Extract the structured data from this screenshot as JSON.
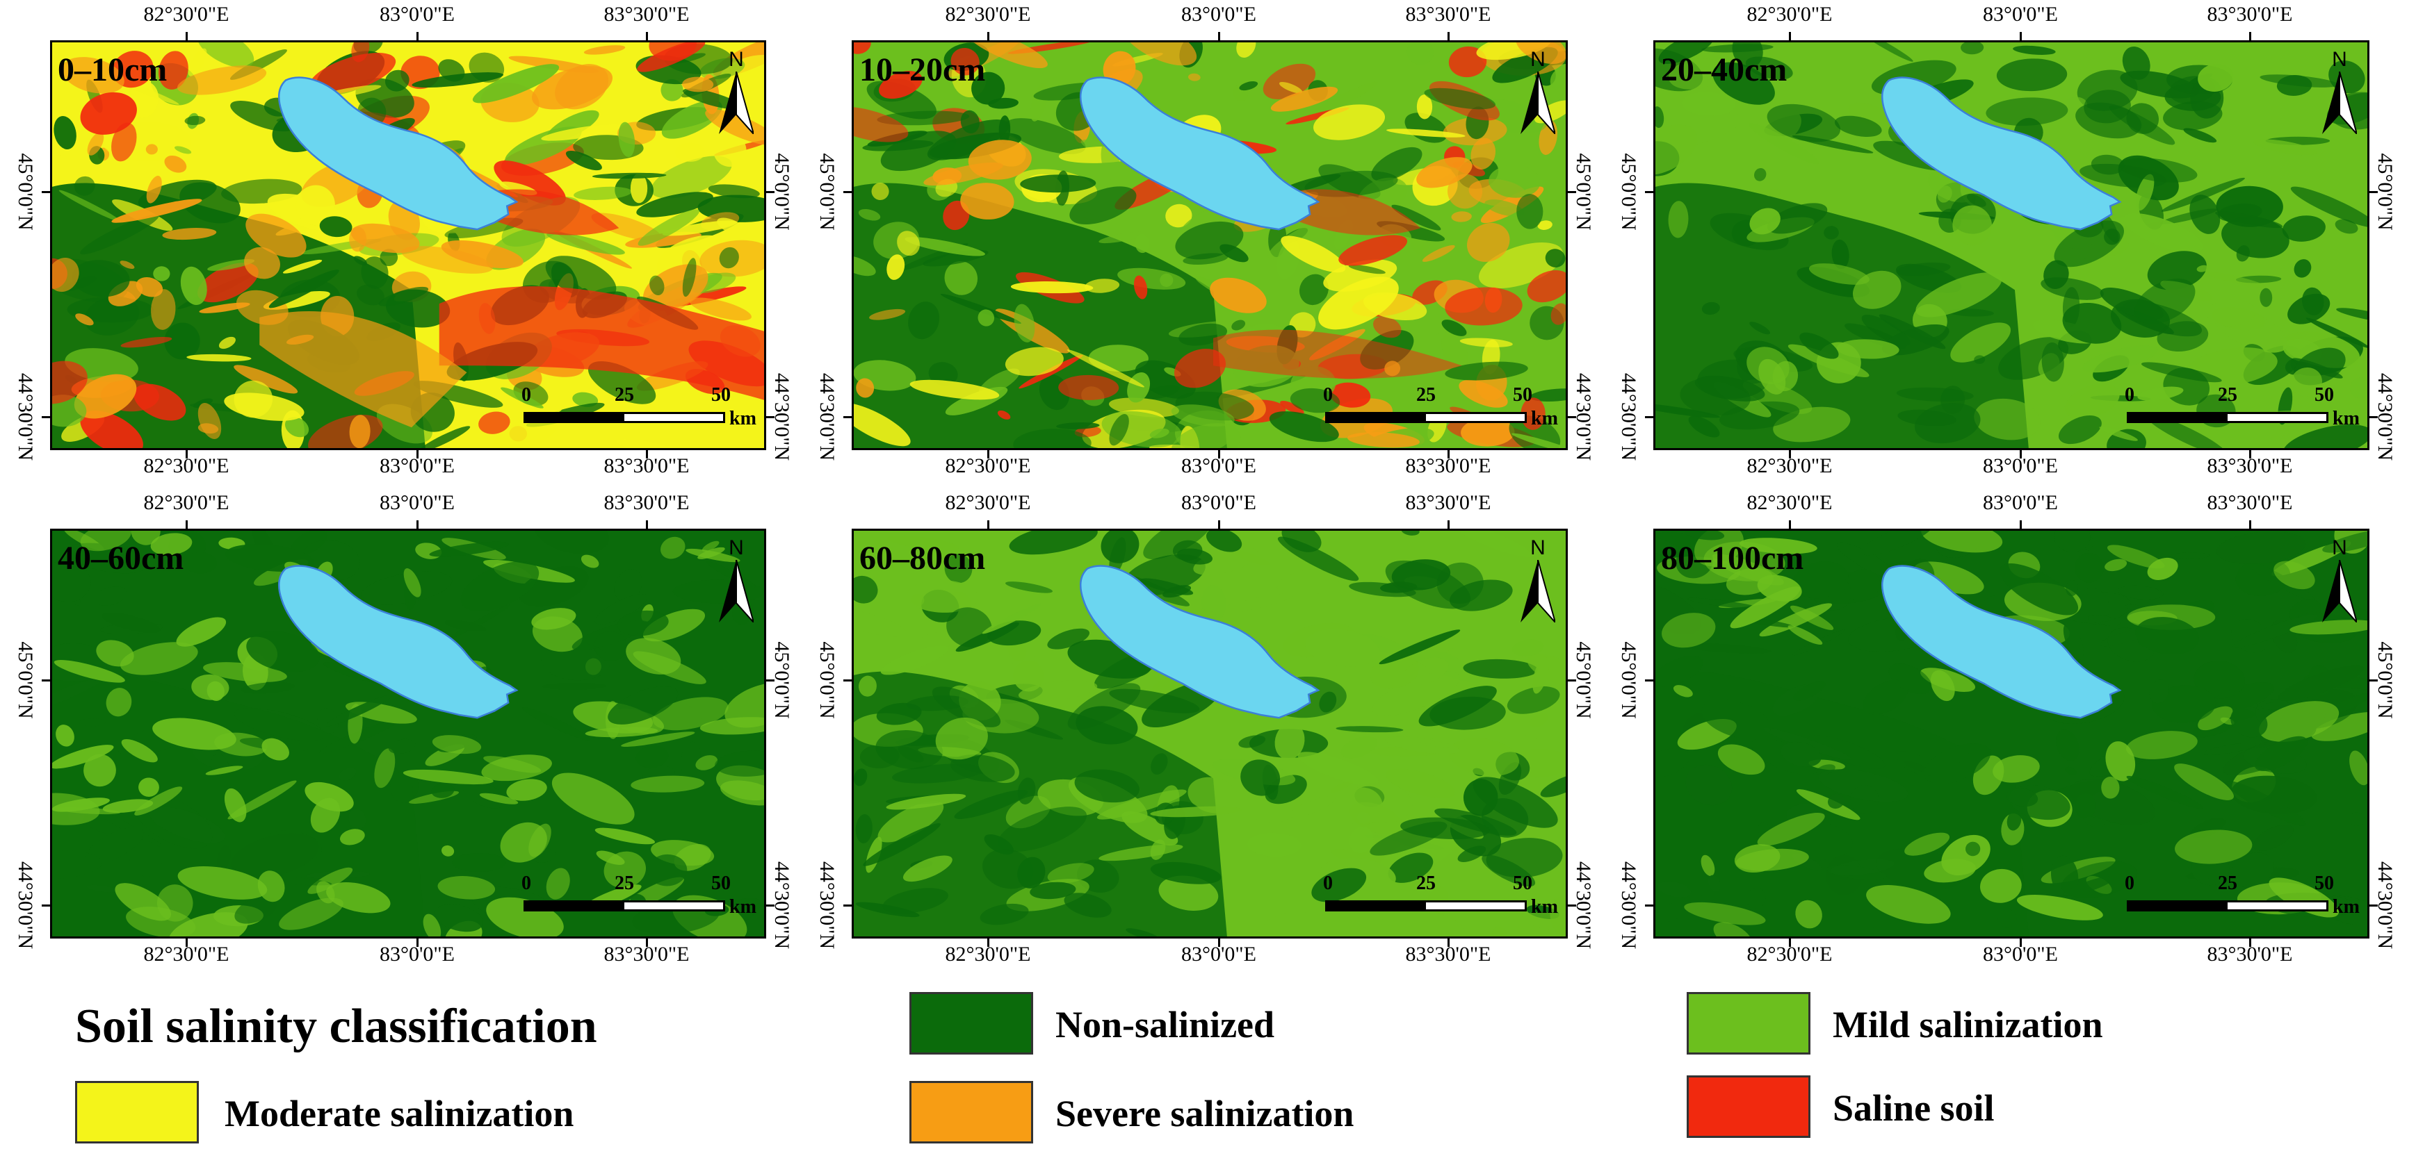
{
  "axes": {
    "lon_labels": [
      "82°30'0\"E",
      "83°0'0\"E",
      "83°30'0\"E"
    ],
    "lat_labels": [
      "45°0'0\"N",
      "44°30'0\"N"
    ]
  },
  "north_label": "N",
  "scale": {
    "ticks": [
      "0",
      "25",
      "50"
    ],
    "unit": "km"
  },
  "panels": [
    {
      "depth": "0–10cm",
      "variant": 0
    },
    {
      "depth": "10–20cm",
      "variant": 1
    },
    {
      "depth": "20–40cm",
      "variant": 2
    },
    {
      "depth": "40–60cm",
      "variant": 3
    },
    {
      "depth": "60–80cm",
      "variant": 4
    },
    {
      "depth": "80–100cm",
      "variant": 5
    }
  ],
  "legend": {
    "title": "Soil salinity classification",
    "items": [
      {
        "label": "Non-salinized",
        "color": "#0b6b0b"
      },
      {
        "label": "Mild salinization",
        "color": "#6cbf1e"
      },
      {
        "label": "Moderate salinization",
        "color": "#f4f41a"
      },
      {
        "label": "Severe salinization",
        "color": "#f79d14"
      },
      {
        "label": "Saline soil",
        "color": "#f1290e"
      }
    ]
  },
  "colors": {
    "lake": "#6bd6f0",
    "lake_outline": "#3b7fd9",
    "non_salinized": "#0b6b0b",
    "mild": "#6cbf1e",
    "moderate": "#f4f41a",
    "severe": "#f79d14",
    "saline": "#f1290e"
  }
}
